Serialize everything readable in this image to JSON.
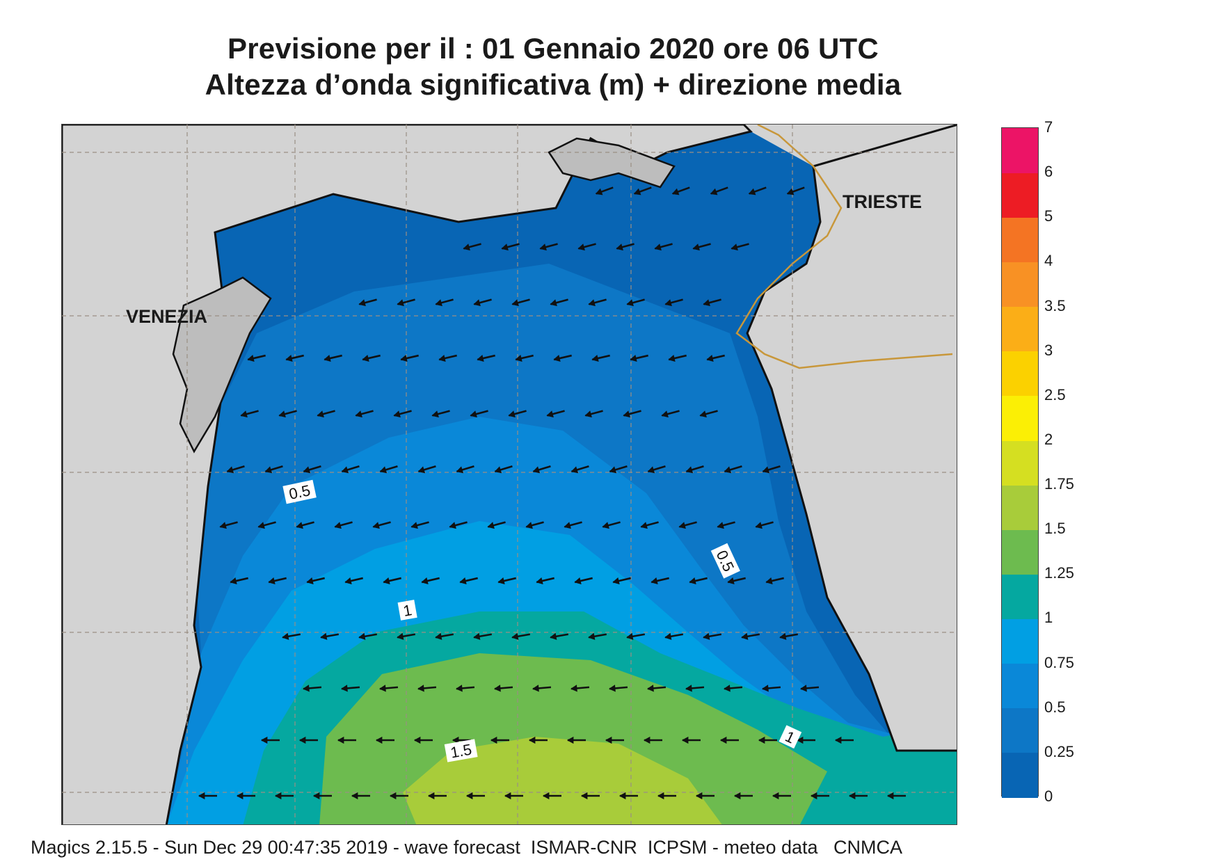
{
  "title": {
    "line1": "Previsione per il  :  01  Gennaio  2020   ore 06 UTC",
    "line2": "Altezza d’onda significativa (m) + direzione media"
  },
  "map": {
    "cities": [
      {
        "name": "VENEZIA"
      },
      {
        "name": "TRIESTE"
      }
    ],
    "contour_labels": [
      "0.5",
      "0.5",
      "1",
      "1",
      "1.5"
    ],
    "wave_direction": "west / south-west"
  },
  "colorbar": {
    "levels": [
      {
        "label": "0",
        "color": "#0865b4"
      },
      {
        "label": "0.25",
        "color": "#0d77c6"
      },
      {
        "label": "0.5",
        "color": "#0a88d8"
      },
      {
        "label": "0.75",
        "color": "#019fe3"
      },
      {
        "label": "1",
        "color": "#05a8a0"
      },
      {
        "label": "1.25",
        "color": "#6dbb4f"
      },
      {
        "label": "1.5",
        "color": "#a8cc3a"
      },
      {
        "label": "1.75",
        "color": "#d5df21"
      },
      {
        "label": "2",
        "color": "#fbef05"
      },
      {
        "label": "2.5",
        "color": "#fbd100"
      },
      {
        "label": "3",
        "color": "#fbae17"
      },
      {
        "label": "3.5",
        "color": "#f89124"
      },
      {
        "label": "4",
        "color": "#f47423"
      },
      {
        "label": "5",
        "color": "#ed1c24"
      },
      {
        "label": "6",
        "color": "#ec1466"
      },
      {
        "label": "7",
        "color": ""
      }
    ]
  },
  "colors": {
    "land": "#d3d3d3",
    "coastline": "#111111",
    "border": "#c8973a",
    "grid": "#9a8f84"
  },
  "footer": "Magics 2.15.5 - Sun Dec 29 00:47:35 2019 - wave forecast  ISMAR-CNR  ICPSM - meteo data   CNMCA"
}
